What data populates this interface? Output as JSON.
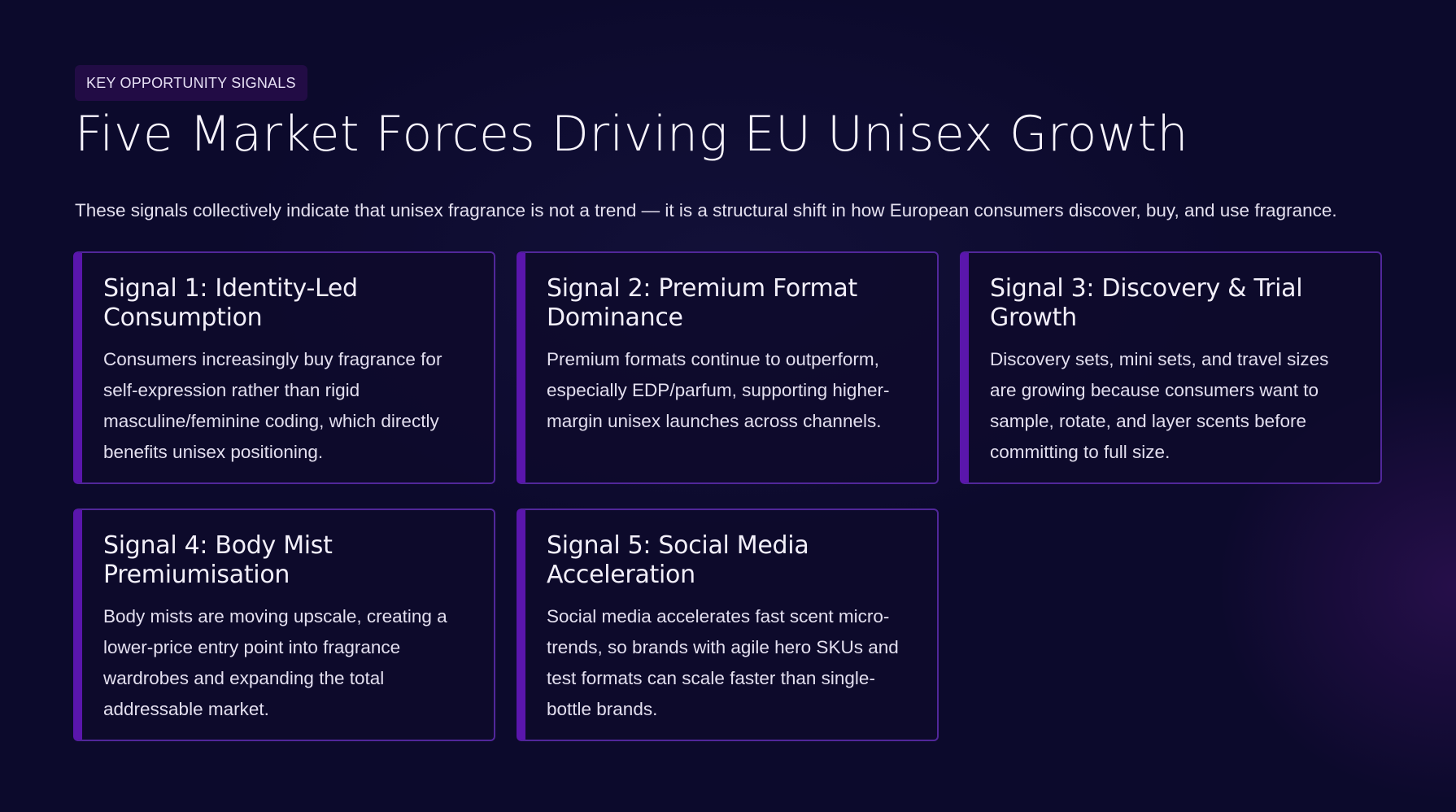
{
  "header": {
    "tag": "KEY OPPORTUNITY SIGNALS",
    "title": "Five Market Forces Driving EU Unisex Growth",
    "subtitle": "These signals collectively indicate that unisex fragrance is not a trend — it is a structural shift in how European consumers discover, buy, and use fragrance."
  },
  "colors": {
    "background": "#0c0a2c",
    "accent": "#5a16ac",
    "card_border": "#51279a",
    "tag_bg": "#220c45"
  },
  "signals": [
    {
      "title": "Signal 1: Identity-Led Consumption",
      "body": "Consumers increasingly buy fragrance for self-expression rather than rigid masculine/feminine coding, which directly benefits unisex positioning."
    },
    {
      "title": "Signal 2: Premium Format Dominance",
      "body": "Premium formats continue to outperform, especially EDP/parfum, supporting higher-margin unisex launches across channels."
    },
    {
      "title": "Signal 3: Discovery & Trial Growth",
      "body": "Discovery sets, mini sets, and travel sizes are growing because consumers want to sample, rotate, and layer scents before committing to full size."
    },
    {
      "title": "Signal 4: Body Mist Premiumisation",
      "body": "Body mists are moving upscale, creating a lower-price entry point into fragrance wardrobes and expanding the total addressable market."
    },
    {
      "title": "Signal 5: Social Media Acceleration",
      "body": "Social media accelerates fast scent micro-trends, so brands with agile hero SKUs and test formats can scale faster than single-bottle brands."
    }
  ]
}
